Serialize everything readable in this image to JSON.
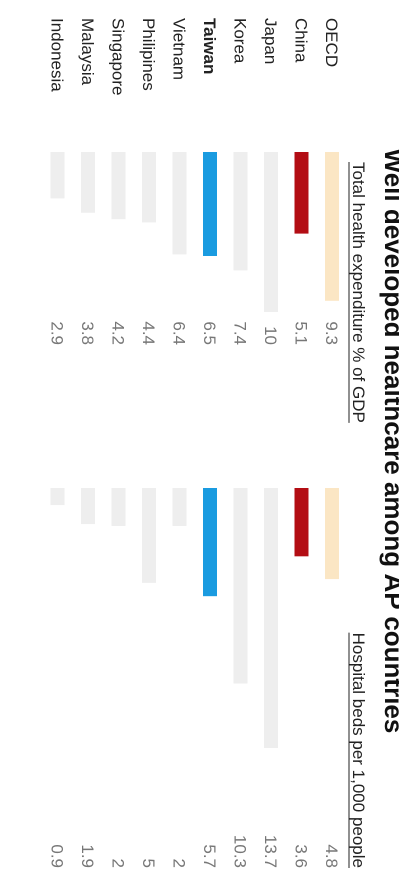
{
  "chart_data": {
    "type": "bar",
    "orientation": "horizontal",
    "title": "Well developed healthcare among AP countries",
    "categories": [
      "OECD",
      "China",
      "Japan",
      "Korea",
      "Taiwan",
      "Vietnam",
      "Philipines",
      "Singapore",
      "Malaysia",
      "Indonesia"
    ],
    "highlight": "Taiwan",
    "series": [
      {
        "name": "Total health expenditure % of GDP",
        "values": [
          9.3,
          5.1,
          10,
          7.4,
          6.5,
          6.4,
          4.4,
          4.2,
          3.8,
          2.9
        ],
        "labels": [
          "9.3",
          "5.1",
          "10",
          "7.4",
          "6.5",
          "6.4",
          "4.4",
          "4.2",
          "3.8",
          "2.9"
        ],
        "xlim": [
          0,
          10
        ]
      },
      {
        "name": "Hospital beds per 1,000 people",
        "values": [
          4.8,
          3.6,
          13.7,
          10.3,
          5.7,
          2,
          5,
          2,
          1.9,
          0.9
        ],
        "labels": [
          "4.8",
          "3.6",
          "13.7",
          "10.3",
          "5.7",
          "2",
          "5",
          "2",
          "1.9",
          "0.9"
        ],
        "xlim": [
          0,
          13.7
        ]
      }
    ],
    "colors": {
      "OECD": "#fbe6c4",
      "China": "#b30d14",
      "Taiwan": "#1a9be0",
      "default": "#eeeeee"
    }
  }
}
